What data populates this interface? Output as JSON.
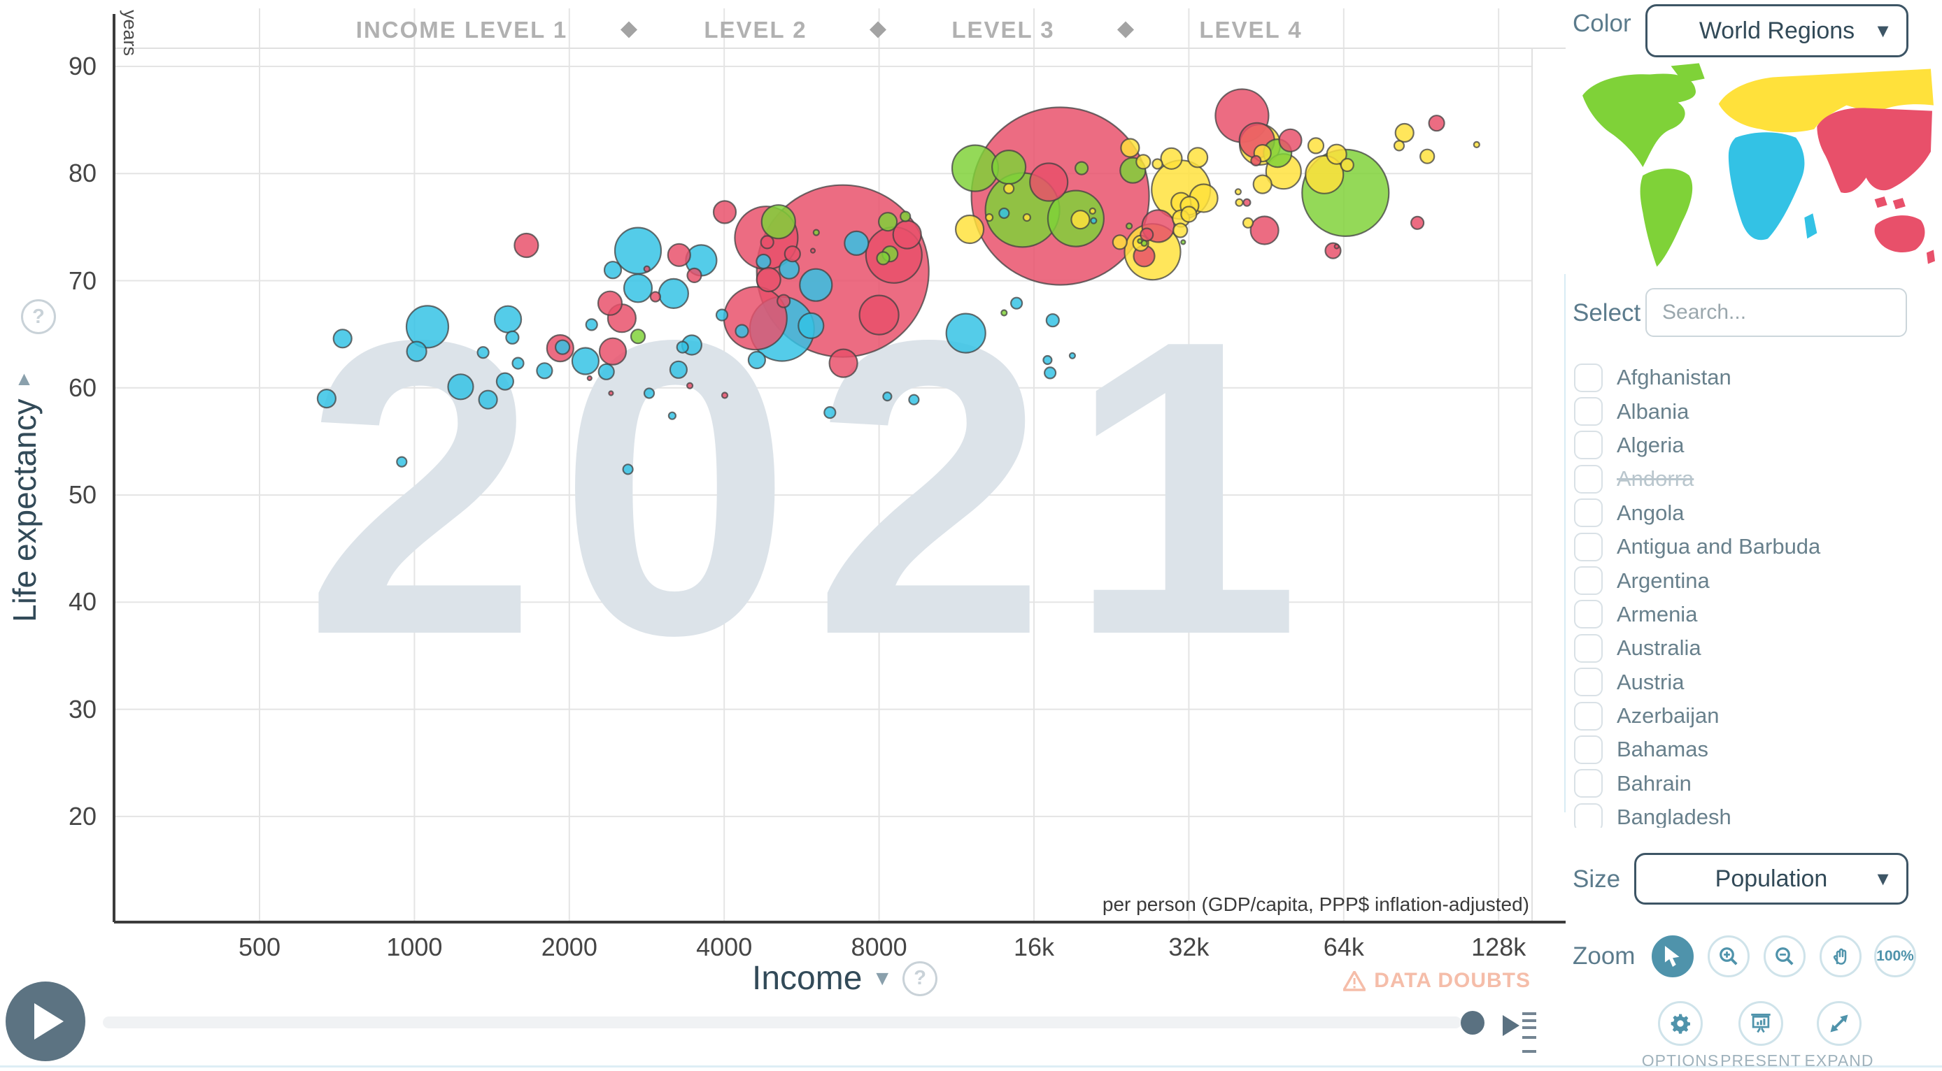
{
  "app": {
    "watermark_year": "2021"
  },
  "header": {
    "levels": [
      {
        "label": "INCOME LEVEL 1",
        "x": 660
      },
      {
        "label": "LEVEL 2",
        "x": 1080
      },
      {
        "label": "LEVEL 3",
        "x": 1434
      },
      {
        "label": "LEVEL 4",
        "x": 1788
      }
    ],
    "diamonds_x": [
      899,
      1255,
      1609
    ]
  },
  "chart_data": {
    "type": "bubble",
    "title": "",
    "xlabel": "Income",
    "x_unit": "per person (GDP/capita, PPP$ inflation-adjusted)",
    "ylabel": "Life expectancy",
    "y_unit": "years",
    "x_scale": "log2",
    "xlim": [
      300,
      190000
    ],
    "ylim": [
      12,
      95
    ],
    "grid": true,
    "legend_position": "none",
    "size_meaning": "Population",
    "year": "2021",
    "x_ticks": [
      {
        "v": 500,
        "label": "500"
      },
      {
        "v": 1000,
        "label": "1000"
      },
      {
        "v": 2000,
        "label": "2000"
      },
      {
        "v": 4000,
        "label": "4000"
      },
      {
        "v": 8000,
        "label": "8000"
      },
      {
        "v": 16000,
        "label": "16k"
      },
      {
        "v": 32000,
        "label": "32k"
      },
      {
        "v": 64000,
        "label": "64k"
      },
      {
        "v": 128000,
        "label": "128k"
      }
    ],
    "y_ticks": [
      {
        "v": 90,
        "label": "90"
      },
      {
        "v": 80,
        "label": "80"
      },
      {
        "v": 70,
        "label": "70"
      },
      {
        "v": 60,
        "label": "60"
      },
      {
        "v": 50,
        "label": "50"
      },
      {
        "v": 40,
        "label": "40"
      },
      {
        "v": 30,
        "label": "30"
      },
      {
        "v": 20,
        "label": "20"
      }
    ],
    "series": [
      {
        "name": "Africa",
        "color_key": "africa",
        "points": [
          [
            675,
            59.0,
            13
          ],
          [
            725,
            64.6,
            13
          ],
          [
            945,
            53.1,
            7
          ],
          [
            1060,
            65.7,
            30
          ],
          [
            1010,
            63.4,
            14
          ],
          [
            1230,
            60.1,
            18
          ],
          [
            1360,
            63.3,
            8
          ],
          [
            1520,
            66.4,
            19
          ],
          [
            1550,
            64.7,
            9
          ],
          [
            1590,
            62.3,
            8
          ],
          [
            1390,
            58.9,
            13
          ],
          [
            1500,
            60.6,
            12
          ],
          [
            1790,
            61.6,
            11
          ],
          [
            1940,
            63.8,
            10
          ],
          [
            2210,
            65.9,
            8
          ],
          [
            2150,
            62.5,
            19
          ],
          [
            2360,
            61.5,
            11
          ],
          [
            2600,
            52.4,
            7
          ],
          [
            2720,
            72.8,
            33
          ],
          [
            2430,
            71.0,
            12
          ],
          [
            2720,
            69.3,
            20
          ],
          [
            3190,
            68.8,
            21
          ],
          [
            3260,
            61.7,
            12
          ],
          [
            2860,
            59.5,
            7
          ],
          [
            3170,
            57.4,
            5
          ],
          [
            3460,
            64.0,
            14
          ],
          [
            3320,
            63.8,
            8
          ],
          [
            4630,
            62.6,
            12
          ],
          [
            4330,
            65.3,
            9
          ],
          [
            4770,
            71.8,
            10
          ],
          [
            3960,
            66.8,
            8
          ],
          [
            3610,
            71.9,
            22
          ],
          [
            5350,
            71.1,
            14
          ],
          [
            6030,
            69.6,
            23
          ],
          [
            5180,
            65.5,
            46
          ],
          [
            5900,
            65.8,
            18
          ],
          [
            6420,
            57.7,
            8
          ],
          [
            7230,
            73.5,
            17
          ],
          [
            8300,
            59.2,
            6
          ],
          [
            9350,
            58.9,
            7
          ],
          [
            11800,
            65.1,
            28
          ],
          [
            14000,
            76.3,
            7
          ],
          [
            14800,
            67.9,
            8
          ],
          [
            17400,
            66.3,
            9
          ],
          [
            17200,
            61.4,
            8
          ],
          [
            17000,
            62.6,
            6
          ],
          [
            20900,
            75.6,
            4
          ],
          [
            19000,
            63.0,
            4
          ]
        ]
      },
      {
        "name": "Asia",
        "color_key": "asia",
        "points": [
          [
            1650,
            73.3,
            17
          ],
          [
            1920,
            63.7,
            19
          ],
          [
            2190,
            60.9,
            3
          ],
          [
            2400,
            67.9,
            17
          ],
          [
            2410,
            59.5,
            3
          ],
          [
            2430,
            63.4,
            19
          ],
          [
            2530,
            66.5,
            20
          ],
          [
            2830,
            71.1,
            4
          ],
          [
            2940,
            68.5,
            7
          ],
          [
            3270,
            72.4,
            16
          ],
          [
            3430,
            60.2,
            4
          ],
          [
            3500,
            70.5,
            10
          ],
          [
            4010,
            59.3,
            4
          ],
          [
            4010,
            76.4,
            16
          ],
          [
            4600,
            66.5,
            45
          ],
          [
            4830,
            74.0,
            45
          ],
          [
            4850,
            73.6,
            9
          ],
          [
            4880,
            70.1,
            17
          ],
          [
            5220,
            68.1,
            9
          ],
          [
            5430,
            72.5,
            11
          ],
          [
            5950,
            72.8,
            3
          ],
          [
            6800,
            70.9,
            123
          ],
          [
            6820,
            62.3,
            20
          ],
          [
            8000,
            66.8,
            28
          ],
          [
            8550,
            72.4,
            40
          ],
          [
            9070,
            74.3,
            20
          ],
          [
            17100,
            79.2,
            27
          ],
          [
            18000,
            77.9,
            127
          ],
          [
            26200,
            72.3,
            15
          ],
          [
            26500,
            74.3,
            9
          ],
          [
            27900,
            75.1,
            23
          ],
          [
            40600,
            85.4,
            38
          ],
          [
            41500,
            77.3,
            5
          ],
          [
            43200,
            81.2,
            7
          ],
          [
            43400,
            83.1,
            25
          ],
          [
            44900,
            74.7,
            20
          ],
          [
            50400,
            83.1,
            16
          ],
          [
            61000,
            72.8,
            11
          ],
          [
            62000,
            73.2,
            3
          ],
          [
            89000,
            75.4,
            9
          ],
          [
            97000,
            84.7,
            11
          ]
        ]
      },
      {
        "name": "Americas",
        "color_key": "americas",
        "points": [
          [
            2720,
            64.8,
            10
          ],
          [
            5100,
            75.5,
            24
          ],
          [
            6040,
            74.5,
            4
          ],
          [
            8150,
            72.1,
            9
          ],
          [
            8320,
            75.5,
            13
          ],
          [
            8400,
            72.5,
            11
          ],
          [
            9000,
            76.0,
            7
          ],
          [
            12300,
            80.5,
            33
          ],
          [
            14000,
            67.0,
            4
          ],
          [
            14300,
            80.6,
            24
          ],
          [
            15200,
            76.6,
            53
          ],
          [
            19300,
            75.8,
            40
          ],
          [
            19800,
            80.5,
            9
          ],
          [
            24500,
            75.1,
            4
          ],
          [
            24900,
            80.3,
            18
          ],
          [
            25700,
            73.7,
            3
          ],
          [
            26200,
            73.5,
            4
          ],
          [
            31200,
            73.6,
            3
          ],
          [
            47600,
            81.9,
            20
          ],
          [
            64500,
            78.2,
            62
          ]
        ]
      },
      {
        "name": "Europe",
        "color_key": "europe",
        "points": [
          [
            12000,
            74.8,
            20
          ],
          [
            13100,
            75.9,
            5
          ],
          [
            14300,
            78.6,
            7
          ],
          [
            15500,
            75.9,
            5
          ],
          [
            19700,
            75.7,
            13
          ],
          [
            20800,
            76.5,
            4
          ],
          [
            23500,
            73.6,
            10
          ],
          [
            24600,
            82.4,
            13
          ],
          [
            25800,
            73.5,
            11
          ],
          [
            26100,
            81.1,
            10
          ],
          [
            27200,
            72.7,
            40
          ],
          [
            27800,
            80.9,
            7
          ],
          [
            29600,
            81.4,
            15
          ],
          [
            30800,
            74.7,
            10
          ],
          [
            30900,
            75.8,
            12
          ],
          [
            30900,
            77.3,
            14
          ],
          [
            30900,
            78.5,
            42
          ],
          [
            32000,
            76.2,
            11
          ],
          [
            32100,
            77.0,
            13
          ],
          [
            33300,
            81.5,
            14
          ],
          [
            34200,
            77.7,
            20
          ],
          [
            39900,
            78.3,
            4
          ],
          [
            40100,
            77.3,
            5
          ],
          [
            41700,
            75.4,
            7
          ],
          [
            44000,
            82.7,
            29
          ],
          [
            44500,
            79.0,
            13
          ],
          [
            44500,
            81.9,
            12
          ],
          [
            48900,
            80.2,
            25
          ],
          [
            56500,
            82.6,
            11
          ],
          [
            58700,
            79.9,
            27
          ],
          [
            62000,
            81.8,
            14
          ],
          [
            65000,
            80.8,
            9
          ],
          [
            82000,
            82.6,
            7
          ],
          [
            84000,
            83.8,
            13
          ],
          [
            93000,
            81.6,
            10
          ],
          [
            116000,
            82.7,
            4
          ]
        ]
      }
    ]
  },
  "axes": {
    "x_dropdown": "Income",
    "y_dropdown": "Life expectancy",
    "arrow": "▼",
    "help_glyph": "?",
    "per_person_note": "per person (GDP/capita, PPP$ inflation-adjusted)",
    "years_unit": "years"
  },
  "statusbar": {
    "data_doubts_label": "DATA DOUBTS"
  },
  "sidebar": {
    "color_label": "Color",
    "color_value": "World Regions",
    "select_label": "Select",
    "search_placeholder": "Search...",
    "countries": [
      "Afghanistan",
      "Albania",
      "Algeria",
      "Andorra",
      "Angola",
      "Antigua and Barbuda",
      "Argentina",
      "Armenia",
      "Australia",
      "Austria",
      "Azerbaijan",
      "Bahamas",
      "Bahrain",
      "Bangladesh"
    ],
    "disabled_country": "Andorra",
    "size_label": "Size",
    "size_value": "Population",
    "zoom_label": "Zoom",
    "zoom_level": "100%",
    "footer": [
      {
        "label": "OPTIONS"
      },
      {
        "label": "PRESENT"
      },
      {
        "label": "EXPAND"
      }
    ]
  },
  "colors": {
    "africa": "#33c2e5",
    "asia": "#e8506a",
    "americas": "#7fd238",
    "europe": "#ffe13b",
    "accent": "#4f93ab",
    "grid": "#e4e4e4",
    "axis_line": "#3c3c3c",
    "border_line": "#e0e0e0",
    "watermark": "#dce3e9",
    "bubble_stroke": "#404040",
    "data_doubts": "#f5bda9"
  }
}
